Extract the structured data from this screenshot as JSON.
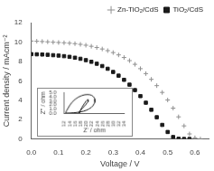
{
  "chart_data": [
    {
      "type": "scatter",
      "xlabel": "Voltage / V",
      "ylabel": "Current density / mAcm⁻²",
      "xlim": [
        0.0,
        0.65
      ],
      "ylim": [
        0,
        12
      ],
      "xticks": [
        {
          "value": 0.0,
          "label": "0.0"
        },
        0.1,
        0.2,
        0.3,
        0.4,
        0.5,
        0.6
      ],
      "yticks": [
        0,
        2,
        4,
        6,
        8,
        10,
        12
      ],
      "grid": false,
      "legend": "upper right",
      "series": [
        {
          "name": "Zn-TiO₂/CdS",
          "color": "#909090",
          "marker": "plus",
          "x": [
            0.0,
            0.02,
            0.04,
            0.06,
            0.08,
            0.1,
            0.12,
            0.14,
            0.16,
            0.18,
            0.2,
            0.22,
            0.24,
            0.26,
            0.28,
            0.3,
            0.32,
            0.34,
            0.36,
            0.38,
            0.4,
            0.42,
            0.44,
            0.46,
            0.48,
            0.5,
            0.52,
            0.54,
            0.56,
            0.58,
            0.6,
            0.62
          ],
          "values": [
            10.1,
            10.08,
            10.05,
            10.02,
            9.98,
            9.95,
            9.92,
            9.88,
            9.83,
            9.76,
            9.67,
            9.56,
            9.43,
            9.28,
            9.11,
            8.91,
            8.67,
            8.4,
            8.08,
            7.7,
            7.25,
            6.74,
            6.15,
            5.5,
            4.8,
            4.02,
            3.18,
            2.28,
            1.35,
            0.52,
            0.12,
            0.0
          ]
        },
        {
          "name": "TiO₂/CdS",
          "color": "#1a1a1a",
          "marker": "square",
          "x": [
            0.0,
            0.02,
            0.04,
            0.06,
            0.08,
            0.1,
            0.12,
            0.14,
            0.16,
            0.18,
            0.2,
            0.22,
            0.24,
            0.26,
            0.28,
            0.3,
            0.32,
            0.34,
            0.36,
            0.38,
            0.4,
            0.42,
            0.44,
            0.46,
            0.48,
            0.5,
            0.52,
            0.54,
            0.56,
            0.58
          ],
          "values": [
            8.75,
            8.73,
            8.71,
            8.68,
            8.64,
            8.6,
            8.54,
            8.47,
            8.38,
            8.27,
            8.13,
            7.96,
            7.76,
            7.52,
            7.24,
            6.91,
            6.53,
            6.1,
            5.6,
            5.04,
            4.42,
            3.74,
            3.01,
            2.24,
            1.45,
            0.72,
            0.2,
            0.02,
            0.0,
            0.0
          ]
        }
      ]
    },
    {
      "type": "line",
      "xlabel": "Z' / ohm",
      "ylabel": "Z'' / ohm",
      "xlim": [
        12,
        34
      ],
      "ylim": [
        0,
        5.0
      ],
      "xticks": [
        12,
        14,
        16,
        18,
        20,
        22,
        24,
        26,
        28,
        30,
        32,
        34
      ],
      "yticks": [
        {
          "value": 0.0,
          "label": "0.0"
        },
        {
          "value": 1.0,
          "label": "1.0"
        },
        {
          "value": 2.0,
          "label": "2.0"
        },
        {
          "value": 3.0,
          "label": "3.0"
        },
        {
          "value": 4.0,
          "label": "4.0"
        },
        {
          "value": 5.0,
          "label": "5.0"
        }
      ],
      "grid": false,
      "series": [
        {
          "color": "#1a1a1a",
          "x": [
            12.5,
            12.8,
            13.3,
            14.0,
            14.9,
            16.0,
            17.2,
            18.4,
            19.5,
            20.5,
            21.3,
            22.0,
            22.5,
            22.9,
            23.1,
            23.2,
            23.1,
            22.8,
            22.4,
            21.8,
            21.0,
            20.1,
            19.0,
            17.8,
            16.6,
            15.4,
            14.3,
            13.4,
            12.8,
            12.5
          ],
          "values": [
            0.0,
            0.5,
            1.1,
            1.9,
            2.7,
            3.4,
            3.95,
            4.3,
            4.5,
            4.55,
            4.5,
            4.35,
            4.1,
            3.8,
            3.45,
            3.05,
            2.65,
            2.2,
            1.75,
            1.35,
            1.0,
            0.7,
            0.45,
            0.28,
            0.16,
            0.08,
            0.03,
            0.01,
            0.0,
            0.0
          ]
        },
        {
          "color": "#1a1a1a",
          "x": [
            17.5,
            17.7,
            18.0,
            18.4,
            18.9,
            19.4,
            19.8,
            20.2,
            20.5,
            20.7,
            20.8,
            20.75,
            20.6,
            20.3,
            19.9,
            19.3,
            18.6,
            17.9,
            17.3,
            17.5
          ],
          "values": [
            0.0,
            0.35,
            0.8,
            1.35,
            1.9,
            2.4,
            2.8,
            3.1,
            3.25,
            3.3,
            3.25,
            3.1,
            2.85,
            2.5,
            2.1,
            1.65,
            1.15,
            0.65,
            0.2,
            0.0
          ]
        }
      ]
    }
  ]
}
